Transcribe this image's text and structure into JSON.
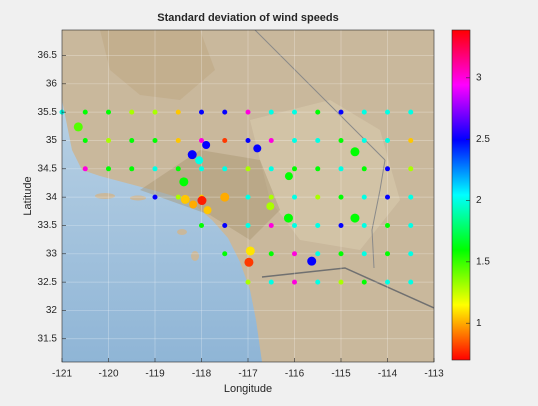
{
  "chart_data": {
    "type": "scatter",
    "title": "Standard deviation of wind speeds",
    "x_label": "Longitude",
    "y_label": "Latitude",
    "xlim": [
      -121,
      -113
    ],
    "ylim": [
      31.09,
      36.95
    ],
    "xticks": [
      -121,
      -120,
      -119,
      -118,
      -117,
      -116,
      -115,
      -114,
      -113
    ],
    "yticks": [
      31.5,
      32,
      32.5,
      33,
      33.5,
      34,
      34.5,
      35,
      35.5,
      36,
      36.5
    ],
    "grid": true,
    "colorbar": {
      "clim": [
        0.7,
        3.39
      ],
      "ticks": [
        1,
        1.5,
        2,
        2.5,
        3
      ],
      "colormap": [
        "#ff0000",
        "#ffff00",
        "#00ff00",
        "#00ffff",
        "#0000ff",
        "#ff00ff",
        "#ff0000"
      ]
    },
    "x": [
      -121,
      -120.5,
      -120,
      -119.5,
      -119,
      -118.5,
      -118,
      -117.5,
      -117,
      -116.5,
      -116,
      -115.5,
      -115,
      -114.5,
      -114,
      -113.5,
      -120.5,
      -120,
      -119.5,
      -119,
      -118.5,
      -118,
      -117.5,
      -117,
      -116.5,
      -116,
      -115.5,
      -115,
      -114.5,
      -114,
      -113.5,
      -120.65,
      -118.2,
      -117.9,
      -118.05,
      -116.8,
      -114.7,
      -120.5,
      -120,
      -119.5,
      -119,
      -118.5,
      -118,
      -117.5,
      -117,
      -116.5,
      -116,
      -115.5,
      -115,
      -114.5,
      -114,
      -113.5,
      -118.38,
      -116.12,
      -119,
      -118.5,
      -118,
      -117.5,
      -117,
      -116.5,
      -116,
      -115.5,
      -115,
      -114.5,
      -114,
      -113.5,
      -118.35,
      -118.18,
      -117.99,
      -117.87,
      -116.52,
      -116.13,
      -114.7,
      -118,
      -117.5,
      -117,
      -116.5,
      -116,
      -115.5,
      -115,
      -114.5,
      -114,
      -113.5,
      -117.5,
      -116.95,
      -116.98,
      -116.5,
      -116,
      -115.63,
      -115.5,
      -115,
      -114.5,
      -114,
      -113.5,
      -117,
      -116.5,
      -116,
      -115.5,
      -115,
      -114.5,
      -114,
      -113.5
    ],
    "y": [
      35.5,
      35.5,
      35.5,
      35.5,
      35.5,
      35.5,
      35.5,
      35.5,
      35.5,
      35.5,
      35.5,
      35.5,
      35.5,
      35.5,
      35.5,
      35.5,
      35,
      35,
      35,
      35,
      35,
      35,
      35,
      35,
      35,
      35,
      35,
      35,
      35,
      35,
      35,
      35.24,
      34.75,
      34.92,
      34.65,
      34.86,
      34.8,
      34.5,
      34.5,
      34.5,
      34.5,
      34.5,
      34.5,
      34.5,
      34.5,
      34.5,
      34.5,
      34.5,
      34.5,
      34.5,
      34.5,
      34.5,
      34.27,
      34.37,
      34,
      34,
      34,
      34,
      34,
      34,
      34,
      34,
      34,
      34,
      34,
      34,
      33.96,
      33.87,
      33.94,
      33.77,
      33.84,
      33.63,
      33.63,
      33.5,
      33.5,
      33.5,
      33.5,
      33.5,
      33.5,
      33.5,
      33.5,
      33.5,
      33.5,
      33,
      33.05,
      32.85,
      33,
      33,
      32.87,
      33,
      33,
      33,
      33,
      33,
      32.5,
      32.5,
      32.5,
      32.5,
      32.5,
      32.5,
      32.5,
      32.5
    ],
    "values": [
      2.0,
      1.6,
      1.6,
      1.3,
      1.3,
      1.05,
      2.5,
      2.5,
      3.0,
      2.0,
      2.0,
      1.6,
      2.5,
      2.0,
      2.0,
      2.0,
      1.6,
      1.3,
      1.6,
      1.6,
      1.05,
      3.0,
      0.8,
      2.5,
      3.0,
      2.0,
      2.0,
      1.6,
      2.0,
      2.0,
      1.05,
      1.45,
      2.5,
      2.5,
      2.0,
      2.5,
      1.6,
      3.0,
      1.6,
      1.6,
      2.0,
      1.6,
      2.0,
      2.0,
      1.3,
      2.0,
      1.6,
      1.6,
      2.0,
      1.6,
      2.5,
      1.3,
      1.6,
      1.6,
      2.5,
      1.3,
      1.05,
      1.0,
      2.0,
      1.3,
      2.0,
      1.3,
      1.6,
      2.0,
      2.5,
      2.0,
      1.05,
      1.0,
      0.75,
      1.05,
      1.3,
      1.6,
      1.6,
      1.6,
      2.5,
      2.0,
      3.0,
      2.0,
      2.0,
      2.5,
      2.0,
      1.6,
      2.0,
      1.6,
      1.1,
      0.8,
      1.6,
      3.0,
      2.5,
      2.0,
      1.6,
      2.0,
      1.6,
      2.0,
      1.3,
      2.0,
      3.0,
      2.0,
      1.3,
      1.6,
      2.0,
      2.0
    ],
    "sizes": [
      5,
      5,
      5,
      5,
      5,
      5,
      5,
      5,
      5,
      5,
      5,
      5,
      5,
      5,
      5,
      5,
      5,
      5,
      5,
      5,
      5,
      5,
      5,
      5,
      5,
      5,
      5,
      5,
      5,
      5,
      5,
      9,
      9,
      8,
      8,
      8,
      9,
      5,
      5,
      5,
      5,
      5,
      5,
      5,
      5,
      5,
      5,
      5,
      5,
      5,
      5,
      5,
      9,
      8,
      5,
      5,
      5,
      9,
      5,
      5,
      5,
      5,
      5,
      5,
      5,
      5,
      9,
      8,
      9,
      8,
      8,
      9,
      9,
      5,
      5,
      5,
      5,
      5,
      5,
      5,
      5,
      5,
      5,
      5,
      9,
      9,
      5,
      5,
      9,
      5,
      5,
      5,
      5,
      5,
      5,
      5,
      5,
      5,
      5,
      5,
      5,
      5
    ]
  }
}
